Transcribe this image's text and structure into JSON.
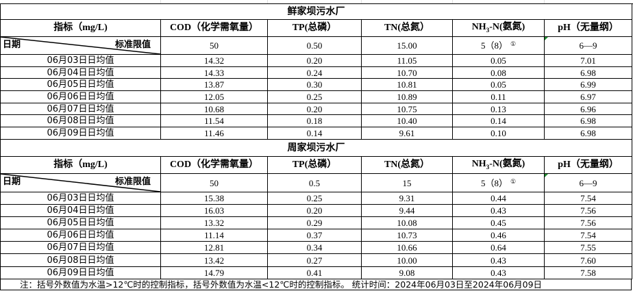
{
  "headers": {
    "indicator": "指标（mg/L)",
    "cod": "COD（化学需氧量）",
    "tp": "TP(总磷）",
    "tn": "TN(总氮）",
    "nh3_a": "NH",
    "nh3_sub": "3",
    "nh3_b": "-N(氨氮)",
    "ph": "pH（无量纲）",
    "date": "日期",
    "limit": "标准限值",
    "footnote_mark": "①"
  },
  "plants": [
    {
      "name": "鲜家坝污水厂",
      "limits": [
        "50",
        "0.50",
        "15.00",
        "5（8）",
        "6—9"
      ],
      "rows": [
        [
          "06月03日日均值",
          "14.32",
          "0.20",
          "11.05",
          "0.05",
          "7.01"
        ],
        [
          "06月04日日均值",
          "14.33",
          "0.24",
          "10.70",
          "0.08",
          "6.98"
        ],
        [
          "06月05日日均值",
          "13.87",
          "0.30",
          "10.81",
          "0.05",
          "6.99"
        ],
        [
          "06月06日日均值",
          "12.05",
          "0.25",
          "10.89",
          "0.11",
          "6.97"
        ],
        [
          "06月07日日均值",
          "10.68",
          "0.20",
          "10.75",
          "0.13",
          "6.96"
        ],
        [
          "06月08日日均值",
          "11.54",
          "0.18",
          "10.40",
          "0.14",
          "6.98"
        ],
        [
          "06月09日日均值",
          "11.46",
          "0.14",
          "9.61",
          "0.10",
          "6.98"
        ]
      ]
    },
    {
      "name": "周家坝污水厂",
      "limits": [
        "50",
        "0.5",
        "15",
        "5（8）",
        "6—9"
      ],
      "rows": [
        [
          "06月03日日均值",
          "15.38",
          "0.25",
          "9.31",
          "0.44",
          "7.54"
        ],
        [
          "06月04日日均值",
          "16.03",
          "0.20",
          "9.44",
          "0.43",
          "7.56"
        ],
        [
          "06月05日日均值",
          "13.32",
          "0.29",
          "10.08",
          "0.45",
          "7.56"
        ],
        [
          "06月06日日均值",
          "11.14",
          "0.37",
          "10.73",
          "0.46",
          "7.54"
        ],
        [
          "06月07日日均值",
          "12.81",
          "0.34",
          "10.66",
          "0.64",
          "7.55"
        ],
        [
          "06月08日日均值",
          "13.42",
          "0.27",
          "10.00",
          "0.43",
          "7.60"
        ],
        [
          "06月09日日均值",
          "14.79",
          "0.41",
          "9.08",
          "0.43",
          "7.58"
        ]
      ]
    }
  ],
  "note": "注：括号外数值为水温>12℃时的控制指标，括号外数值为水温<12℃时的控制指标。  统计时间：2024年06月03日至2024年06月09日",
  "colors": {
    "comment_marker": "#1e8a2e",
    "border": "#000000"
  }
}
